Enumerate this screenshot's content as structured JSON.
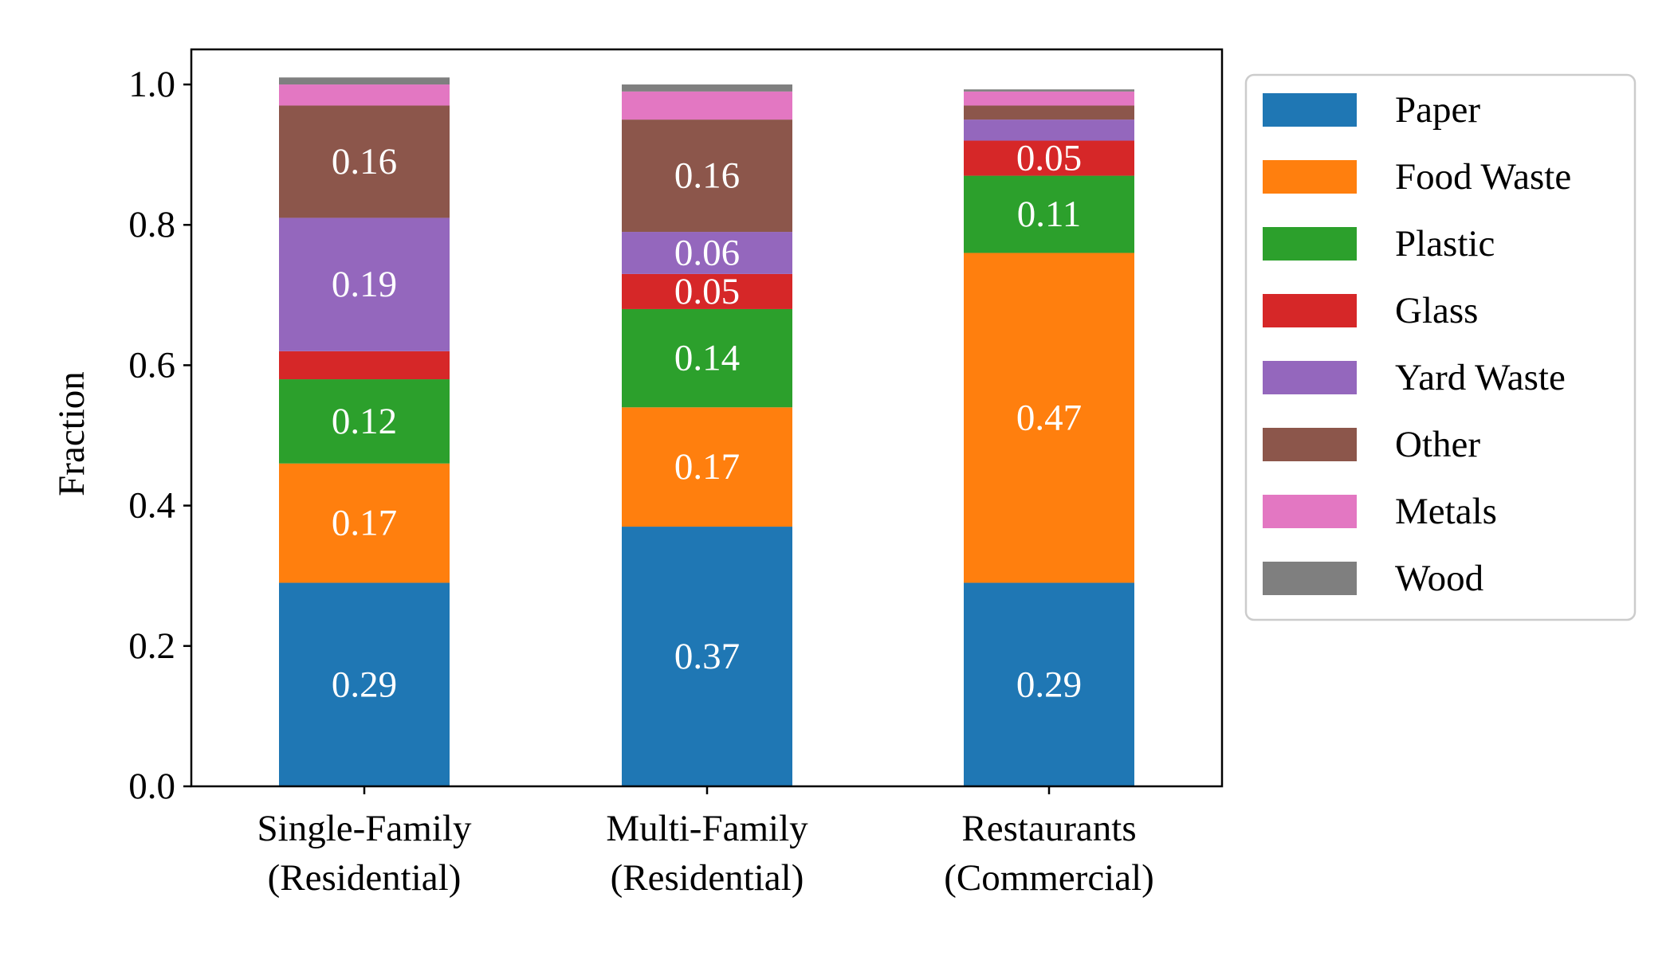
{
  "chart_data": {
    "type": "bar",
    "stacked": true,
    "categories": [
      [
        "Single-Family",
        "(Residential)"
      ],
      [
        "Multi-Family",
        "(Residential)"
      ],
      [
        "Restaurants",
        "(Commercial)"
      ]
    ],
    "xlabel": "",
    "ylabel": "Fraction",
    "ylim": [
      0,
      1.05
    ],
    "yticks": [
      "0.0",
      "0.2",
      "0.4",
      "0.6",
      "0.8",
      "1.0"
    ],
    "legend_position": "right",
    "series": [
      {
        "name": "Paper",
        "color": "#1f77b4",
        "values": [
          0.29,
          0.37,
          0.29
        ],
        "labels": [
          "0.29",
          "0.37",
          "0.29"
        ]
      },
      {
        "name": "Food Waste",
        "color": "#ff7f0e",
        "values": [
          0.17,
          0.17,
          0.47
        ],
        "labels": [
          "0.17",
          "0.17",
          "0.47"
        ]
      },
      {
        "name": "Plastic",
        "color": "#2ca02c",
        "values": [
          0.12,
          0.14,
          0.11
        ],
        "labels": [
          "0.12",
          "0.14",
          "0.11"
        ]
      },
      {
        "name": "Glass",
        "color": "#d62728",
        "values": [
          0.04,
          0.05,
          0.05
        ],
        "labels": [
          "",
          "0.05",
          "0.05"
        ]
      },
      {
        "name": "Yard Waste",
        "color": "#9467bd",
        "values": [
          0.19,
          0.06,
          0.03
        ],
        "labels": [
          "0.19",
          "0.06",
          ""
        ]
      },
      {
        "name": "Other",
        "color": "#8c564b",
        "values": [
          0.16,
          0.16,
          0.02
        ],
        "labels": [
          "0.16",
          "0.16",
          ""
        ]
      },
      {
        "name": "Metals",
        "color": "#e377c2",
        "values": [
          0.03,
          0.04,
          0.02
        ],
        "labels": [
          "",
          "",
          ""
        ]
      },
      {
        "name": "Wood",
        "color": "#7f7f7f",
        "values": [
          0.01,
          0.01,
          0.003
        ],
        "labels": [
          "",
          "",
          ""
        ]
      }
    ]
  }
}
